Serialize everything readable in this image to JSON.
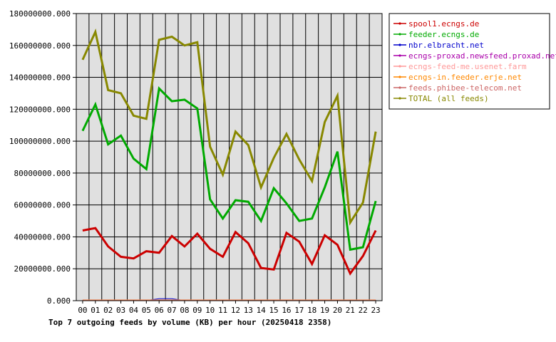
{
  "chart_data": {
    "type": "line",
    "title": "Top 7 outgoing feeds by volume (KB) per hour (20250418 2358)",
    "x": [
      "00",
      "01",
      "02",
      "03",
      "04",
      "05",
      "06",
      "07",
      "08",
      "09",
      "10",
      "11",
      "12",
      "13",
      "14",
      "15",
      "16",
      "17",
      "18",
      "19",
      "20",
      "21",
      "22",
      "23"
    ],
    "ylim": [
      0,
      180000000
    ],
    "yticks": [
      "0.000",
      "20000000.000",
      "40000000.000",
      "60000000.000",
      "80000000.000",
      "100000000.000",
      "120000000.000",
      "140000000.000",
      "160000000.000",
      "180000000.000"
    ],
    "grid": true,
    "legend_position": "right",
    "plot_background": "#e0e0e0",
    "series": [
      {
        "name": "spool1.ecngs.de",
        "color": "#cc0000",
        "stroke": 3,
        "values": [
          44000000,
          45500000,
          34000000,
          27500000,
          26500000,
          31000000,
          30000000,
          40500000,
          34000000,
          42000000,
          32500000,
          27500000,
          43000000,
          36000000,
          20500000,
          19500000,
          42500000,
          37000000,
          23000000,
          41000000,
          35000000,
          17000000,
          28000000,
          44000000
        ]
      },
      {
        "name": "feeder.ecngs.de",
        "color": "#00aa00",
        "stroke": 3,
        "values": [
          106500000,
          123000000,
          98000000,
          103500000,
          89000000,
          82500000,
          133000000,
          125000000,
          126000000,
          120500000,
          63500000,
          51500000,
          63000000,
          62000000,
          50000000,
          70500000,
          61000000,
          50000000,
          51500000,
          71000000,
          93500000,
          32000000,
          33500000,
          62500000
        ]
      },
      {
        "name": "nbr.elbracht.net",
        "color": "#0000cc",
        "stroke": 1,
        "values": [
          100000,
          100000,
          100000,
          100000,
          100000,
          100000,
          1200000,
          1200000,
          100000,
          100000,
          100000,
          100000,
          100000,
          100000,
          100000,
          100000,
          100000,
          100000,
          100000,
          100000,
          100000,
          100000,
          100000,
          100000
        ]
      },
      {
        "name": "ecngs-proxad.newsfeed.proxad.net",
        "color": "#aa00aa",
        "stroke": 1,
        "values": [
          400000,
          400000,
          400000,
          400000,
          400000,
          400000,
          400000,
          400000,
          400000,
          400000,
          400000,
          400000,
          400000,
          400000,
          400000,
          400000,
          400000,
          400000,
          400000,
          400000,
          400000,
          400000,
          400000,
          400000
        ]
      },
      {
        "name": "ecngs-feed-me.usenet.farm",
        "color": "#ff9999",
        "stroke": 1,
        "values": [
          500000,
          500000,
          500000,
          500000,
          500000,
          500000,
          500000,
          500000,
          500000,
          500000,
          500000,
          500000,
          500000,
          500000,
          500000,
          500000,
          500000,
          500000,
          500000,
          500000,
          500000,
          500000,
          500000,
          500000
        ]
      },
      {
        "name": "ecngs-in.feeder.erje.net",
        "color": "#ff8800",
        "stroke": 1,
        "values": [
          300000,
          300000,
          300000,
          300000,
          300000,
          300000,
          300000,
          300000,
          300000,
          300000,
          300000,
          300000,
          300000,
          300000,
          300000,
          300000,
          300000,
          300000,
          300000,
          300000,
          300000,
          300000,
          300000,
          300000
        ]
      },
      {
        "name": "feeds.phibee-telecom.net",
        "color": "#cc6666",
        "stroke": 1,
        "values": [
          200000,
          200000,
          200000,
          200000,
          200000,
          200000,
          200000,
          200000,
          200000,
          200000,
          200000,
          200000,
          200000,
          200000,
          200000,
          200000,
          200000,
          200000,
          200000,
          200000,
          200000,
          200000,
          200000,
          200000
        ]
      },
      {
        "name": "TOTAL (all feeds)",
        "color": "#888800",
        "stroke": 3,
        "values": [
          151000000,
          168500000,
          132000000,
          130000000,
          116000000,
          114000000,
          163500000,
          165500000,
          160000000,
          162000000,
          96500000,
          79000000,
          106000000,
          97500000,
          71000000,
          89500000,
          104500000,
          88500000,
          75000000,
          112000000,
          128500000,
          49000000,
          61500000,
          106000000
        ]
      }
    ]
  }
}
